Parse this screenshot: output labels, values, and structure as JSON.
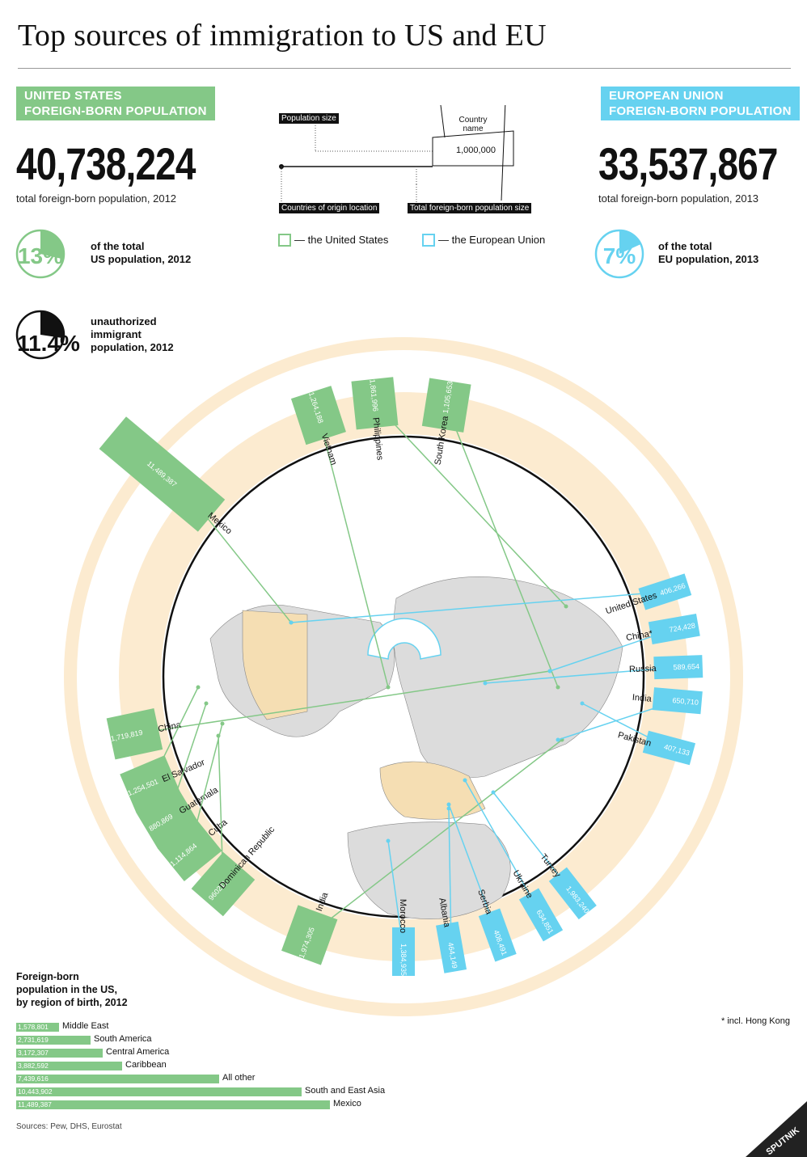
{
  "title": "Top sources of immigration to US and EU",
  "colors": {
    "us": "#84c887",
    "eu": "#66d2f0",
    "ring": "#fcebd0",
    "land": "#dcdcdc",
    "landHighlight": "#f5deb3"
  },
  "us": {
    "badge_line1": "UNITED STATES",
    "badge_line2": "FOREIGN-BORN POPULATION",
    "total": "40,738,224",
    "total_label": "total foreign-born population, 2012",
    "pct": "13%",
    "pct_value": 13,
    "pct_label_line1": "of the total",
    "pct_label_line2": "US population, 2012",
    "unauth_pct": "11.4%",
    "unauth_value": 11.4,
    "unauth_line1": "unauthorized",
    "unauth_line2": "immigrant",
    "unauth_line3": "population, 2012"
  },
  "eu": {
    "badge_line1": "EUROPEAN UNION",
    "badge_line2": "FOREIGN-BORN POPULATION",
    "total": "33,537,867",
    "total_label": "total foreign-born population, 2013",
    "pct": "7%",
    "pct_value": 7,
    "pct_label_line1": "of the total",
    "pct_label_line2": "EU population, 2013"
  },
  "legend": {
    "population_size": "Population size",
    "country_name": "Country name",
    "million": "1,000,000",
    "origin_location": "Countries of origin location",
    "total_size": "Total foreign-born population size",
    "us_key": "— the United States",
    "eu_key": "— the European Union"
  },
  "chart_data": [
    {
      "type": "bar",
      "title": "Top sources of immigration to US",
      "categories": [
        "Mexico",
        "Vietnam",
        "Philippines",
        "South Korea",
        "China",
        "El Salvador",
        "Guatemala",
        "Cuba",
        "Dominican Republic",
        "India"
      ],
      "values": [
        11489387,
        1264188,
        1861996,
        1105653,
        1719819,
        1254501,
        880869,
        1114864,
        960211,
        1974305
      ],
      "labels": [
        "11,489,387",
        "1,264,188",
        "1,861,996",
        "1,105,653",
        "1,719,819",
        "1,254,501",
        "880,869",
        "1,114,864",
        "960211",
        "1,974,305"
      ]
    },
    {
      "type": "bar",
      "title": "Top sources of immigration to EU",
      "categories": [
        "United States",
        "China*",
        "Russia",
        "India",
        "Pakistan",
        "Turkey",
        "Ukraine",
        "Serbia",
        "Albania",
        "Morocco"
      ],
      "values": [
        406266,
        724428,
        589654,
        650710,
        407133,
        1983240,
        634851,
        408491,
        464149,
        1384935
      ],
      "labels": [
        "406,266",
        "724,428",
        "589,654",
        "650,710",
        "407,133",
        "1,983,240",
        "634,851",
        "408,491",
        "464,149",
        "1,384,935"
      ]
    },
    {
      "type": "bar",
      "title": "Foreign-born population in the US, by region of birth, 2012",
      "categories": [
        "Middle East",
        "South America",
        "Central America",
        "Caribbean",
        "All other",
        "South and East Asia",
        "Mexico"
      ],
      "values": [
        1578801,
        2731619,
        3172307,
        3882592,
        7439616,
        10443902,
        11489387
      ],
      "labels": [
        "1,578,801",
        "2,731,619",
        "3,172,307",
        "3,882,592",
        "7,439,616",
        "10,443,902",
        "11,489,387"
      ]
    }
  ],
  "regions_title_line1": "Foreign-born",
  "regions_title_line2": "population in the US,",
  "regions_title_line3": "by region of birth, 2012",
  "footnote": "* incl. Hong Kong",
  "sources": "Sources: Pew, DHS, Eurostat",
  "logo": "SPUTNIK"
}
